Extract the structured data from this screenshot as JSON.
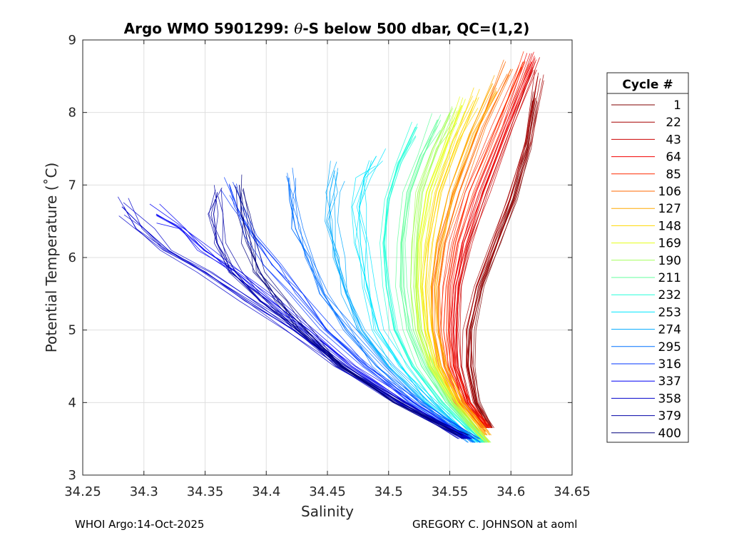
{
  "chart_data": {
    "type": "line",
    "title_prefix": "Argo WMO 5901299: ",
    "title_theta": "θ",
    "title_suffix": "-S below 500 dbar,  QC=(1,2)",
    "xlabel": "Salinity",
    "ylabel": "Potential Temperature (˚C)",
    "xlim": [
      34.25,
      34.65
    ],
    "ylim": [
      3,
      9
    ],
    "x_ticks": [
      "34.25",
      "34.3",
      "34.35",
      "34.4",
      "34.45",
      "34.5",
      "34.55",
      "34.6",
      "34.65"
    ],
    "y_ticks": [
      "3",
      "4",
      "5",
      "6",
      "7",
      "8",
      "9"
    ],
    "grid": true,
    "legend_position": "right",
    "legend_title": "Cycle #",
    "legend_entries": [
      {
        "label": "1",
        "color": "#800000"
      },
      {
        "label": "22",
        "color": "#a60000"
      },
      {
        "label": "43",
        "color": "#cc0000"
      },
      {
        "label": "64",
        "color": "#f20000"
      },
      {
        "label": "85",
        "color": "#ff2a00"
      },
      {
        "label": "106",
        "color": "#ff6a00"
      },
      {
        "label": "127",
        "color": "#ffa800"
      },
      {
        "label": "148",
        "color": "#ffd700"
      },
      {
        "label": "169",
        "color": "#e6ff19"
      },
      {
        "label": "190",
        "color": "#a4ff5b"
      },
      {
        "label": "211",
        "color": "#63ff9c"
      },
      {
        "label": "232",
        "color": "#26ffd9"
      },
      {
        "label": "253",
        "color": "#00e6ff"
      },
      {
        "label": "274",
        "color": "#00aaff"
      },
      {
        "label": "295",
        "color": "#0070ff"
      },
      {
        "label": "316",
        "color": "#0035ff"
      },
      {
        "label": "337",
        "color": "#0000f5"
      },
      {
        "label": "358",
        "color": "#0000cc"
      },
      {
        "label": "379",
        "color": "#0000a6"
      },
      {
        "label": "400",
        "color": "#00007d"
      }
    ],
    "series": [
      {
        "name": "1",
        "color": "#800000",
        "x": [
          34.583,
          34.572,
          34.567,
          34.568,
          34.576,
          34.589,
          34.602,
          34.614,
          34.62
        ],
        "y": [
          3.65,
          4.0,
          4.5,
          5.0,
          5.6,
          6.2,
          6.8,
          7.5,
          8.2
        ]
      },
      {
        "name": "22",
        "color": "#a60000",
        "x": [
          34.582,
          34.57,
          34.564,
          34.564,
          34.572,
          34.585,
          34.599,
          34.613,
          34.622
        ],
        "y": [
          3.65,
          4.0,
          4.5,
          5.0,
          5.6,
          6.2,
          6.8,
          7.6,
          8.5
        ]
      },
      {
        "name": "43",
        "color": "#cc0000",
        "x": [
          34.58,
          34.565,
          34.557,
          34.555,
          34.558,
          34.566,
          34.58,
          34.6,
          34.62
        ],
        "y": [
          3.65,
          4.0,
          4.5,
          5.0,
          5.6,
          6.2,
          6.9,
          7.8,
          8.7
        ]
      },
      {
        "name": "64",
        "color": "#f20000",
        "x": [
          34.58,
          34.563,
          34.553,
          34.551,
          34.553,
          34.56,
          34.574,
          34.595,
          34.617
        ],
        "y": [
          3.65,
          4.0,
          4.5,
          5.0,
          5.6,
          6.2,
          6.9,
          7.8,
          8.7
        ]
      },
      {
        "name": "85",
        "color": "#ff2a00",
        "x": [
          34.58,
          34.561,
          34.549,
          34.545,
          34.547,
          34.553,
          34.566,
          34.588,
          34.61
        ],
        "y": [
          3.65,
          4.0,
          4.5,
          5.0,
          5.6,
          6.2,
          6.9,
          7.8,
          8.7
        ]
      },
      {
        "name": "106",
        "color": "#ff6a00",
        "x": [
          34.579,
          34.559,
          34.546,
          34.541,
          34.541,
          34.546,
          34.558,
          34.578,
          34.6
        ],
        "y": [
          3.6,
          4.0,
          4.5,
          5.0,
          5.6,
          6.2,
          6.9,
          7.8,
          8.6
        ]
      },
      {
        "name": "127",
        "color": "#ffa800",
        "x": [
          34.579,
          34.557,
          34.543,
          34.536,
          34.535,
          34.539,
          34.549,
          34.566,
          34.585
        ],
        "y": [
          3.55,
          4.0,
          4.5,
          5.0,
          5.6,
          6.2,
          6.9,
          7.7,
          8.4
        ]
      },
      {
        "name": "148",
        "color": "#ffd700",
        "x": [
          34.58,
          34.556,
          34.54,
          34.532,
          34.53,
          34.533,
          34.541,
          34.556,
          34.572
        ],
        "y": [
          3.45,
          4.0,
          4.5,
          5.0,
          5.6,
          6.2,
          6.9,
          7.6,
          8.2
        ]
      },
      {
        "name": "169",
        "color": "#e6ff19",
        "x": [
          34.579,
          34.553,
          34.536,
          34.527,
          34.524,
          34.526,
          34.533,
          34.546,
          34.56
        ],
        "y": [
          3.45,
          4.0,
          4.5,
          5.0,
          5.6,
          6.2,
          6.9,
          7.5,
          8.1
        ]
      },
      {
        "name": "190",
        "color": "#a4ff5b",
        "x": [
          34.578,
          34.55,
          34.532,
          34.522,
          34.518,
          34.519,
          34.524,
          34.536,
          34.55
        ],
        "y": [
          3.45,
          4.0,
          4.5,
          5.0,
          5.6,
          6.2,
          6.9,
          7.5,
          8.0
        ]
      },
      {
        "name": "211",
        "color": "#63ff9c",
        "x": [
          34.577,
          34.547,
          34.527,
          34.515,
          34.51,
          34.51,
          34.515,
          34.526,
          34.54
        ],
        "y": [
          3.45,
          4.0,
          4.5,
          5.0,
          5.6,
          6.2,
          6.9,
          7.4,
          7.9
        ]
      },
      {
        "name": "232",
        "color": "#26ffd9",
        "x": [
          34.575,
          34.542,
          34.519,
          34.505,
          34.498,
          34.496,
          34.499,
          34.508,
          34.522
        ],
        "y": [
          3.45,
          4.0,
          4.5,
          5.0,
          5.6,
          6.2,
          6.8,
          7.3,
          7.8
        ]
      },
      {
        "name": "253",
        "color": "#00e6ff",
        "x": [
          34.573,
          34.536,
          34.51,
          34.492,
          34.482,
          34.477,
          34.476,
          34.48,
          34.49
        ],
        "y": [
          3.45,
          4.0,
          4.5,
          5.0,
          5.6,
          6.2,
          6.7,
          7.1,
          7.4
        ]
      },
      {
        "name": "274",
        "color": "#00aaff",
        "x": [
          34.571,
          34.53,
          34.5,
          34.478,
          34.465,
          34.456,
          34.452,
          34.452,
          34.456
        ],
        "y": [
          3.45,
          4.0,
          4.5,
          5.0,
          5.5,
          6.0,
          6.5,
          6.9,
          7.2
        ]
      },
      {
        "name": "295",
        "color": "#0070ff",
        "x": [
          34.569,
          34.525,
          34.49,
          34.465,
          34.447,
          34.433,
          34.424,
          34.419,
          34.418
        ],
        "y": [
          3.45,
          4.0,
          4.5,
          5.0,
          5.5,
          6.0,
          6.4,
          6.8,
          7.1
        ]
      },
      {
        "name": "316",
        "color": "#0035ff",
        "x": [
          34.567,
          34.52,
          34.48,
          34.45,
          34.426,
          34.405,
          34.388,
          34.376,
          34.37
        ],
        "y": [
          3.5,
          4.0,
          4.5,
          5.0,
          5.5,
          5.9,
          6.3,
          6.7,
          7.0
        ]
      },
      {
        "name": "337",
        "color": "#0000f5",
        "x": [
          34.565,
          34.515,
          34.47,
          34.435,
          34.404,
          34.375,
          34.35,
          34.33,
          34.31
        ],
        "y": [
          3.5,
          4.0,
          4.5,
          5.0,
          5.4,
          5.8,
          6.1,
          6.4,
          6.6
        ]
      },
      {
        "name": "358",
        "color": "#0000cc",
        "x": [
          34.563,
          34.51,
          34.462,
          34.422,
          34.385,
          34.35,
          34.32,
          34.3,
          34.282
        ],
        "y": [
          3.5,
          4.0,
          4.5,
          5.0,
          5.4,
          5.8,
          6.1,
          6.4,
          6.7
        ]
      },
      {
        "name": "379",
        "color": "#0000a6",
        "x": [
          34.562,
          34.507,
          34.46,
          34.425,
          34.395,
          34.372,
          34.36,
          34.357,
          34.36
        ],
        "y": [
          3.5,
          4.0,
          4.5,
          5.0,
          5.4,
          5.8,
          6.2,
          6.6,
          6.9
        ]
      },
      {
        "name": "400",
        "color": "#00007d",
        "x": [
          34.56,
          34.505,
          34.462,
          34.432,
          34.41,
          34.395,
          34.385,
          34.38,
          34.378
        ],
        "y": [
          3.55,
          4.0,
          4.5,
          5.0,
          5.4,
          5.8,
          6.2,
          6.6,
          7.0
        ]
      }
    ]
  },
  "footer": {
    "left": "WHOI Argo:14-Oct-2025",
    "right": "GREGORY C. JOHNSON at aoml"
  }
}
